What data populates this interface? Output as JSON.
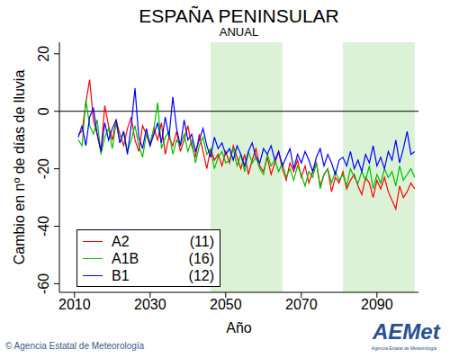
{
  "chart_data": {
    "type": "line",
    "title": "ESPAÑA PENINSULAR",
    "subtitle": "ANUAL",
    "x_label": "Año",
    "y_label": "Cambio en nº de días de lluvia",
    "footer": "© Agencia Estatal de Meteorología",
    "logo": "AEMet",
    "logo_caption": "Agencia Estatal de Meteorología",
    "legend": "lower left",
    "xlim": [
      2006,
      2101
    ],
    "xticks": [
      2010,
      2030,
      2050,
      2070,
      2090
    ],
    "ylim": [
      -63,
      24
    ],
    "yticks": [
      -60,
      -40,
      -20,
      0,
      20
    ],
    "reference_line": 0,
    "shaded_periods": [
      [
        2046,
        2065
      ],
      [
        2081,
        2100
      ]
    ],
    "x": [
      2011,
      2012,
      2013,
      2014,
      2015,
      2016,
      2017,
      2018,
      2019,
      2020,
      2021,
      2022,
      2023,
      2024,
      2025,
      2026,
      2027,
      2028,
      2029,
      2030,
      2031,
      2032,
      2033,
      2034,
      2035,
      2036,
      2037,
      2038,
      2039,
      2040,
      2041,
      2042,
      2043,
      2044,
      2045,
      2046,
      2047,
      2048,
      2049,
      2050,
      2051,
      2052,
      2053,
      2054,
      2055,
      2056,
      2057,
      2058,
      2059,
      2060,
      2061,
      2062,
      2063,
      2064,
      2065,
      2066,
      2067,
      2068,
      2069,
      2070,
      2071,
      2072,
      2073,
      2074,
      2075,
      2076,
      2077,
      2078,
      2079,
      2080,
      2081,
      2082,
      2083,
      2084,
      2085,
      2086,
      2087,
      2088,
      2089,
      2090,
      2091,
      2092,
      2093,
      2094,
      2095,
      2096,
      2097,
      2098,
      2099,
      2100
    ],
    "series": [
      {
        "name": "A2",
        "color": "#ff0000",
        "members": {
          "value": 11,
          "label": "(11)"
        },
        "values": [
          -8,
          -7,
          3,
          11,
          -3,
          -8,
          -14,
          2,
          -5,
          -10,
          -3,
          -8,
          -12,
          -6,
          -2,
          -10,
          -14,
          -5,
          -8,
          -12,
          -6,
          -10,
          -4,
          -15,
          -9,
          -12,
          -7,
          -14,
          -10,
          -5,
          -12,
          -16,
          -8,
          -14,
          -20,
          -13,
          -17,
          -15,
          -19,
          -14,
          -18,
          -12,
          -16,
          -20,
          -15,
          -22,
          -17,
          -13,
          -19,
          -21,
          -16,
          -22,
          -18,
          -14,
          -20,
          -24,
          -18,
          -21,
          -17,
          -23,
          -19,
          -25,
          -21,
          -18,
          -26,
          -22,
          -20,
          -28,
          -23,
          -25,
          -21,
          -27,
          -24,
          -22,
          -26,
          -29,
          -23,
          -25,
          -30,
          -24,
          -27,
          -23,
          -28,
          -31,
          -34,
          -26,
          -30,
          -28,
          -25,
          -27
        ]
      },
      {
        "name": "A1B",
        "color": "#00c000",
        "members": {
          "value": 16,
          "label": "(16)"
        },
        "values": [
          -10,
          -12,
          4,
          -5,
          -8,
          -3,
          -15,
          -9,
          -6,
          -13,
          -4,
          -11,
          -7,
          -14,
          -10,
          -5,
          -12,
          -16,
          -8,
          -11,
          -6,
          3,
          -13,
          -9,
          -7,
          -15,
          -10,
          -12,
          -8,
          -14,
          -10,
          -18,
          -12,
          -9,
          -15,
          -13,
          -20,
          -16,
          -14,
          -18,
          -17,
          -13,
          -19,
          -15,
          -21,
          -14,
          -18,
          -16,
          -20,
          -22,
          -15,
          -19,
          -17,
          -21,
          -18,
          -23,
          -20,
          -24,
          -19,
          -22,
          -26,
          -21,
          -23,
          -18,
          -27,
          -22,
          -20,
          -25,
          -21,
          -24,
          -22,
          -26,
          -20,
          -23,
          -25,
          -21,
          -24,
          -19,
          -27,
          -22,
          -25,
          -20,
          -23,
          -21,
          -26,
          -19,
          -24,
          -22,
          -20,
          -23
        ]
      },
      {
        "name": "B1",
        "color": "#0000ff",
        "members": {
          "value": 12,
          "label": "(12)"
        },
        "values": [
          -9,
          -5,
          -12,
          -2,
          1,
          -8,
          -14,
          -4,
          -10,
          -6,
          -3,
          -11,
          -7,
          -15,
          -5,
          8,
          -9,
          -13,
          -6,
          -12,
          -8,
          -4,
          -11,
          -2,
          -9,
          5,
          -6,
          -12,
          -3,
          -10,
          -8,
          -14,
          -10,
          -6,
          -12,
          -16,
          -9,
          -13,
          -11,
          -15,
          -13,
          -17,
          -12,
          -15,
          -19,
          -14,
          -11,
          -16,
          -18,
          -13,
          -15,
          -12,
          -17,
          -14,
          -19,
          -16,
          -13,
          -20,
          -15,
          -18,
          -14,
          -17,
          -21,
          -16,
          -13,
          -19,
          -15,
          -18,
          -22,
          -17,
          -16,
          -19,
          -14,
          -20,
          -17,
          -21,
          -15,
          -18,
          -12,
          -19,
          -16,
          -20,
          -14,
          -17,
          -10,
          -18,
          -13,
          -7,
          -15,
          -14
        ]
      }
    ]
  }
}
